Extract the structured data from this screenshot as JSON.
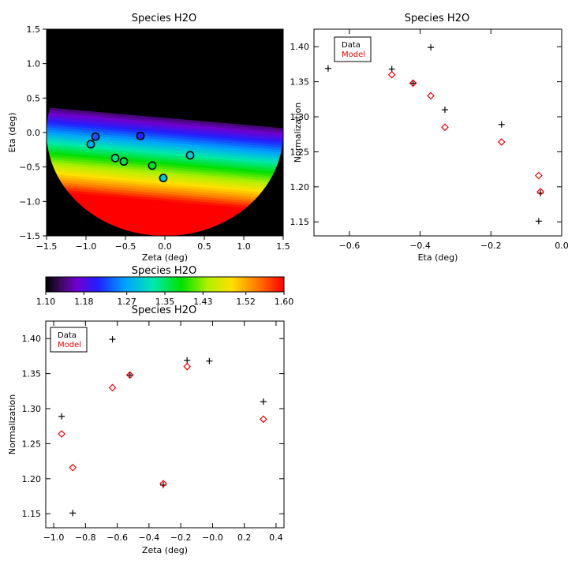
{
  "colors": {
    "axis": "#000000",
    "data_marker": "#000000",
    "model_marker": "#e60000",
    "background": "#ffffff",
    "map_bg": "#000000",
    "circle_stroke": "#000000"
  },
  "chart_data": [
    {
      "id": "map",
      "type": "heatmap",
      "title": "Species H2O",
      "xlabel": "Zeta (deg)",
      "ylabel": "Eta (deg)",
      "xlim": [
        -1.5,
        1.5
      ],
      "ylim": [
        -1.5,
        1.5
      ],
      "xticks": [
        -1.5,
        -1.0,
        -0.5,
        0.0,
        0.5,
        1.0,
        1.5
      ],
      "yticks": [
        -1.5,
        -1.0,
        -0.5,
        0.0,
        0.5,
        1.0,
        1.5
      ],
      "xtick_labels": [
        "−1.5",
        "−1.0",
        "−0.5",
        "0.0",
        "0.5",
        "1.0",
        "1.5"
      ],
      "ytick_labels": [
        "−1.5",
        "−1.0",
        "−0.5",
        "0.0",
        "0.5",
        "1.0",
        "1.5"
      ],
      "disk": {
        "center": [
          0.0,
          0.0
        ],
        "radius_deg": 1.5
      },
      "gradient": {
        "tilt_slope": -0.1,
        "top_eta": 0.22,
        "bottom_eta": -1.0,
        "value_top": 1.1,
        "value_bottom": 1.6
      },
      "points": [
        {
          "zeta": -0.88,
          "eta": -0.06,
          "value": 1.216
        },
        {
          "zeta": -0.94,
          "eta": -0.17,
          "value": 1.264
        },
        {
          "zeta": -0.31,
          "eta": -0.05,
          "value": 1.193
        },
        {
          "zeta": -0.63,
          "eta": -0.37,
          "value": 1.33
        },
        {
          "zeta": -0.52,
          "eta": -0.42,
          "value": 1.348
        },
        {
          "zeta": -0.16,
          "eta": -0.48,
          "value": 1.36
        },
        {
          "zeta": -0.02,
          "eta": -0.66,
          "value": 1.285
        },
        {
          "zeta": 0.32,
          "eta": -0.33,
          "value": 1.285
        }
      ]
    },
    {
      "id": "colorbar",
      "type": "colorbar",
      "title": "Species H2O",
      "range": [
        1.1,
        1.6
      ],
      "tick_values": [
        1.1,
        1.18,
        1.27,
        1.35,
        1.43,
        1.52,
        1.6
      ],
      "tick_labels": [
        "1.10",
        "1.18",
        "1.27",
        "1.35",
        "1.43",
        "1.52",
        "1.60"
      ]
    },
    {
      "id": "eta_scatter",
      "type": "scatter",
      "title": "Species H2O",
      "xlabel": "Eta (deg)",
      "ylabel": "Normalization",
      "xlim": [
        -0.7,
        0.0
      ],
      "ylim": [
        1.13,
        1.425
      ],
      "xticks": [
        -0.6,
        -0.4,
        -0.2,
        0.0
      ],
      "xtick_labels": [
        "−0.6",
        "−0.4",
        "−0.2",
        "0.0"
      ],
      "yticks": [
        1.15,
        1.2,
        1.25,
        1.3,
        1.35,
        1.4
      ],
      "ytick_labels": [
        "1.15",
        "1.20",
        "1.25",
        "1.30",
        "1.35",
        "1.40"
      ],
      "legend": [
        "Data",
        "Model"
      ],
      "series": [
        {
          "name": "Data",
          "marker": "plus",
          "x": [
            -0.66,
            -0.48,
            -0.42,
            -0.37,
            -0.33,
            -0.17,
            -0.065,
            -0.06
          ],
          "y": [
            1.369,
            1.368,
            1.348,
            1.399,
            1.31,
            1.289,
            1.151,
            1.191
          ]
        },
        {
          "name": "Model",
          "marker": "diamond",
          "x": [
            -0.48,
            -0.42,
            -0.37,
            -0.33,
            -0.17,
            -0.065,
            -0.06
          ],
          "y": [
            1.36,
            1.348,
            1.33,
            1.285,
            1.264,
            1.216,
            1.193
          ]
        }
      ]
    },
    {
      "id": "zeta_scatter",
      "type": "scatter",
      "title": "Species H2O",
      "xlabel": "Zeta (deg)",
      "ylabel": "Normalization",
      "xlim": [
        -1.05,
        0.45
      ],
      "ylim": [
        1.13,
        1.425
      ],
      "xticks": [
        -1.0,
        -0.8,
        -0.6,
        -0.4,
        -0.2,
        0.0,
        0.2,
        0.4
      ],
      "xtick_labels": [
        "−1.0",
        "−0.8",
        "−0.6",
        "−0.4",
        "−0.2",
        "−0.0",
        "0.2",
        "0.4"
      ],
      "yticks": [
        1.15,
        1.2,
        1.25,
        1.3,
        1.35,
        1.4
      ],
      "ytick_labels": [
        "1.15",
        "1.20",
        "1.25",
        "1.30",
        "1.35",
        "1.40"
      ],
      "legend": [
        "Data",
        "Model"
      ],
      "series": [
        {
          "name": "Data",
          "marker": "plus",
          "x": [
            -0.95,
            -0.88,
            -0.63,
            -0.52,
            -0.31,
            -0.16,
            -0.02,
            0.32
          ],
          "y": [
            1.289,
            1.151,
            1.399,
            1.348,
            1.191,
            1.369,
            1.368,
            1.31
          ]
        },
        {
          "name": "Model",
          "marker": "diamond",
          "x": [
            -0.95,
            -0.88,
            -0.63,
            -0.52,
            -0.31,
            -0.16,
            0.32
          ],
          "y": [
            1.264,
            1.216,
            1.33,
            1.348,
            1.193,
            1.36,
            1.285
          ]
        }
      ]
    }
  ]
}
